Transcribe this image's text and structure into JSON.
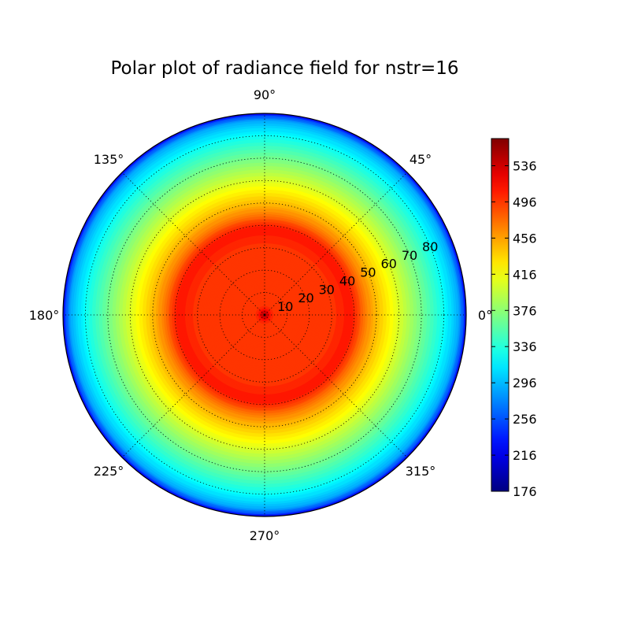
{
  "chart_data": {
    "type": "heatmap",
    "projection": "polar",
    "title": "Polar plot of radiance field for nstr=16",
    "angular_tick_labels": [
      "0°",
      "45°",
      "90°",
      "135°",
      "180°",
      "225°",
      "270°",
      "315°"
    ],
    "angular_ticks_deg": [
      0,
      45,
      90,
      135,
      180,
      225,
      270,
      315
    ],
    "radial_tick_labels": [
      "10",
      "20",
      "30",
      "40",
      "50",
      "60",
      "70",
      "80"
    ],
    "radial_ticks": [
      10,
      20,
      30,
      40,
      50,
      60,
      70,
      80
    ],
    "rlim": [
      0,
      90
    ],
    "grid": true,
    "colormap": "jet",
    "colorbar": {
      "tick_labels": [
        "176",
        "216",
        "256",
        "296",
        "336",
        "376",
        "416",
        "456",
        "496",
        "536"
      ],
      "ticks": [
        176,
        216,
        256,
        296,
        336,
        376,
        416,
        456,
        496,
        536
      ],
      "range": [
        176,
        566
      ],
      "placement": "right"
    },
    "radial_profile": {
      "r": [
        0,
        1,
        2,
        3,
        5,
        8,
        12,
        20,
        30,
        35,
        38,
        40,
        42,
        45,
        50,
        55,
        60,
        65,
        70,
        75,
        80,
        84,
        87,
        89,
        90
      ],
      "value": [
        566,
        540,
        520,
        505,
        496,
        496,
        496,
        496,
        496,
        505,
        512,
        505,
        490,
        470,
        445,
        425,
        405,
        385,
        365,
        345,
        325,
        305,
        285,
        250,
        210
      ]
    }
  }
}
